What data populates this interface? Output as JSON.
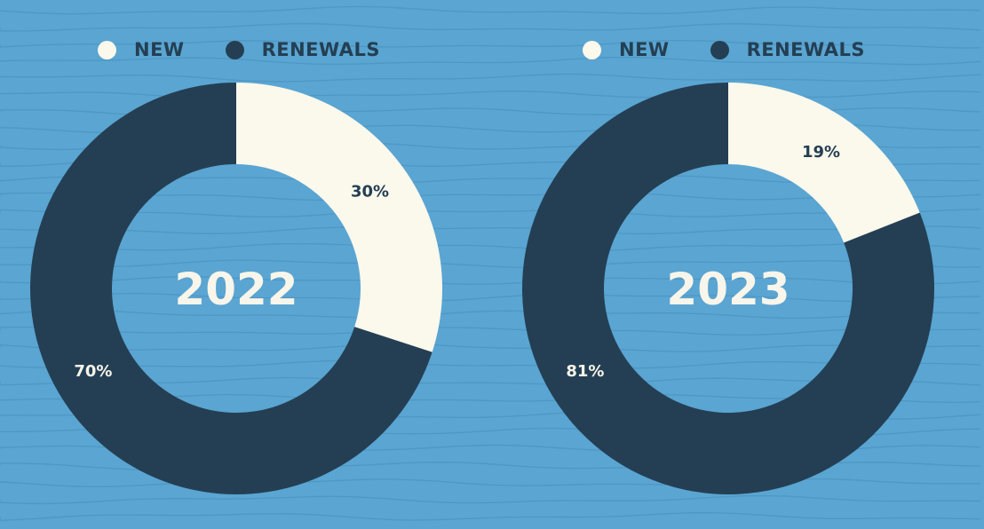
{
  "colors": {
    "background": "#5aa5d2",
    "wave": "#4c93c0",
    "new": "#fbf8ec",
    "renewals": "#243f53",
    "label_on_dark": "#f8f5ea",
    "label_on_light": "#243f53"
  },
  "chart_data": [
    {
      "type": "pie",
      "title": "2022",
      "legend": [
        "NEW",
        "RENEWALS"
      ],
      "legend_position": "top",
      "series": [
        {
          "name": "NEW",
          "value": 30,
          "label": "30%"
        },
        {
          "name": "RENEWALS",
          "value": 70,
          "label": "70%"
        }
      ]
    },
    {
      "type": "pie",
      "title": "2023",
      "legend": [
        "NEW",
        "RENEWALS"
      ],
      "legend_position": "top",
      "series": [
        {
          "name": "NEW",
          "value": 19,
          "label": "19%"
        },
        {
          "name": "RENEWALS",
          "value": 81,
          "label": "81%"
        }
      ]
    }
  ]
}
